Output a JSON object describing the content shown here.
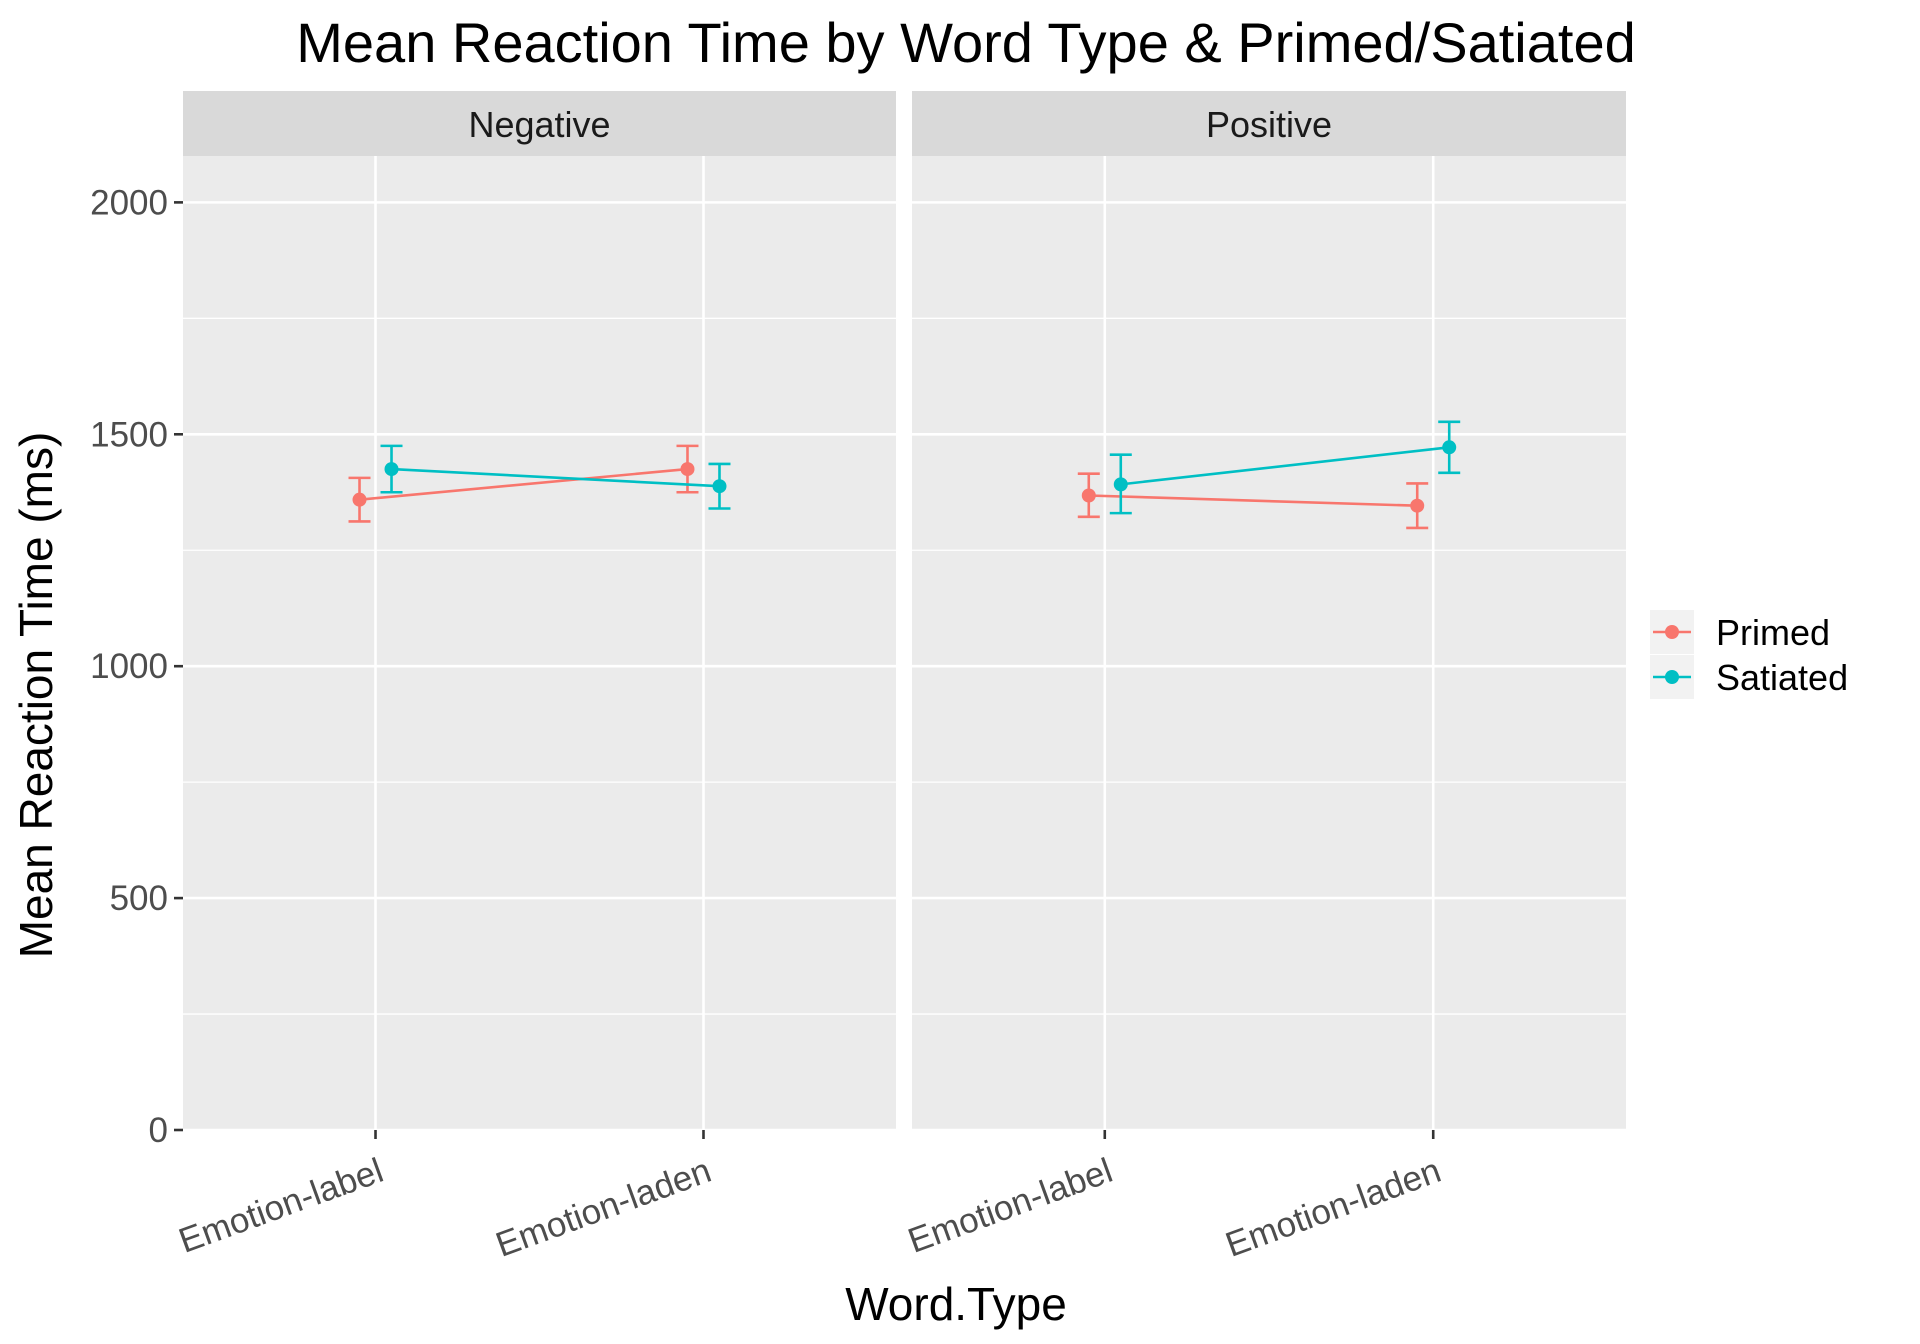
{
  "chart_data": {
    "type": "line",
    "title": "Mean Reaction Time by Word Type & Primed/Satiated",
    "xlabel": "Word.Type",
    "ylabel": "Mean Reaction Time (ms)",
    "categories": [
      "Emotion-label",
      "Emotion-laden"
    ],
    "ylim": [
      0,
      2100
    ],
    "yticks": [
      "0",
      "500",
      "1000",
      "1500",
      "2000"
    ],
    "legend_position": "right",
    "grid": true,
    "facets": [
      {
        "label": "Negative",
        "series": [
          {
            "name": "Primed",
            "values": [
              1359,
              1425
            ],
            "lower": [
              1312,
              1375
            ],
            "upper": [
              1406,
              1475
            ]
          },
          {
            "name": "Satiated",
            "values": [
              1425,
              1388
            ],
            "lower": [
              1375,
              1340
            ],
            "upper": [
              1475,
              1436
            ]
          }
        ]
      },
      {
        "label": "Positive",
        "series": [
          {
            "name": "Primed",
            "values": [
              1368,
              1346
            ],
            "lower": [
              1322,
              1298
            ],
            "upper": [
              1415,
              1394
            ]
          },
          {
            "name": "Satiated",
            "values": [
              1392,
              1472
            ],
            "lower": [
              1330,
              1417
            ],
            "upper": [
              1456,
              1527
            ]
          }
        ]
      }
    ],
    "legend": [
      {
        "name": "Primed",
        "color": "#F8766D"
      },
      {
        "name": "Satiated",
        "color": "#00BFC4"
      }
    ]
  }
}
